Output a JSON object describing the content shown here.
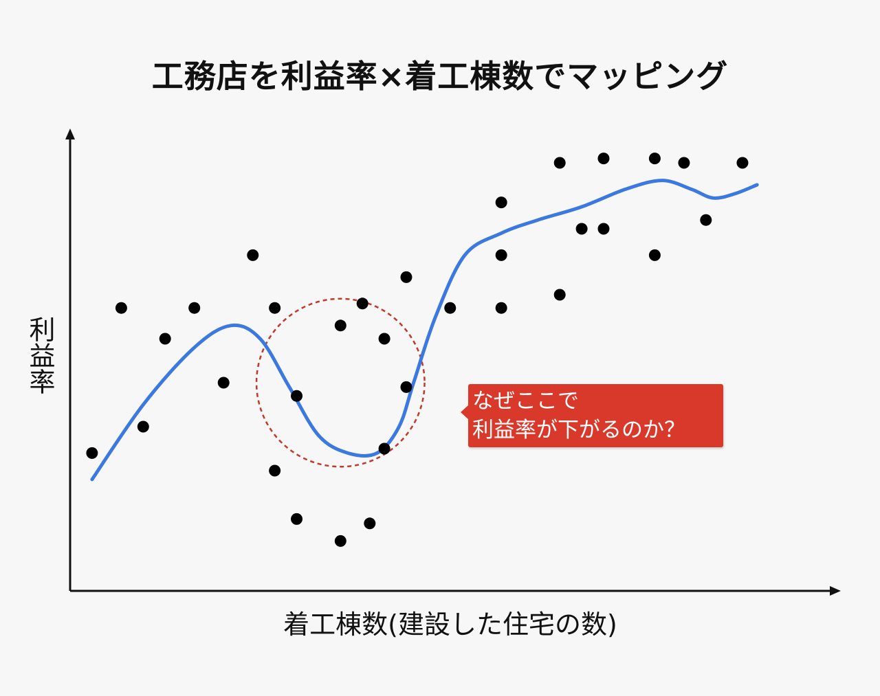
{
  "chart_data": {
    "type": "scatter",
    "title": "工務店を利益率×着工棟数でマッピング",
    "xlabel": "着工棟数(建設した住宅の数)",
    "ylabel": "利益率",
    "xlim": [
      0,
      100
    ],
    "ylim": [
      0,
      100
    ],
    "grid": false,
    "axis_ticks": false,
    "point_color": "#000000",
    "trend_color": "#3b78e0",
    "points": [
      {
        "x": 3,
        "y": 29
      },
      {
        "x": 7,
        "y": 62
      },
      {
        "x": 10,
        "y": 35
      },
      {
        "x": 13,
        "y": 55
      },
      {
        "x": 17,
        "y": 62
      },
      {
        "x": 21,
        "y": 45
      },
      {
        "x": 25,
        "y": 74
      },
      {
        "x": 28,
        "y": 25
      },
      {
        "x": 28,
        "y": 62
      },
      {
        "x": 31,
        "y": 42
      },
      {
        "x": 31,
        "y": 14
      },
      {
        "x": 37,
        "y": 58
      },
      {
        "x": 37,
        "y": 9
      },
      {
        "x": 40,
        "y": 63
      },
      {
        "x": 41,
        "y": 13
      },
      {
        "x": 43,
        "y": 55
      },
      {
        "x": 43,
        "y": 30
      },
      {
        "x": 46,
        "y": 44
      },
      {
        "x": 46,
        "y": 69
      },
      {
        "x": 52,
        "y": 62
      },
      {
        "x": 59,
        "y": 62
      },
      {
        "x": 59,
        "y": 74
      },
      {
        "x": 59,
        "y": 86
      },
      {
        "x": 67,
        "y": 65
      },
      {
        "x": 67,
        "y": 95
      },
      {
        "x": 70,
        "y": 80
      },
      {
        "x": 73,
        "y": 80
      },
      {
        "x": 73,
        "y": 96
      },
      {
        "x": 80,
        "y": 74
      },
      {
        "x": 80,
        "y": 96
      },
      {
        "x": 84,
        "y": 95
      },
      {
        "x": 87,
        "y": 82
      },
      {
        "x": 92,
        "y": 95
      }
    ],
    "trend_line": [
      {
        "x": 3,
        "y": 23
      },
      {
        "x": 10,
        "y": 40
      },
      {
        "x": 17,
        "y": 53
      },
      {
        "x": 22,
        "y": 58
      },
      {
        "x": 26,
        "y": 55
      },
      {
        "x": 30,
        "y": 44
      },
      {
        "x": 34,
        "y": 33
      },
      {
        "x": 38,
        "y": 29
      },
      {
        "x": 42,
        "y": 29
      },
      {
        "x": 45,
        "y": 35
      },
      {
        "x": 47,
        "y": 45
      },
      {
        "x": 50,
        "y": 60
      },
      {
        "x": 54,
        "y": 74
      },
      {
        "x": 59,
        "y": 79
      },
      {
        "x": 64,
        "y": 82
      },
      {
        "x": 70,
        "y": 85
      },
      {
        "x": 76,
        "y": 89
      },
      {
        "x": 81,
        "y": 91
      },
      {
        "x": 85,
        "y": 89
      },
      {
        "x": 88,
        "y": 87
      },
      {
        "x": 91,
        "y": 88
      },
      {
        "x": 94,
        "y": 90
      }
    ],
    "highlight_circle": {
      "center": {
        "x": 37,
        "y": 45
      },
      "radius_x": 11.5,
      "color": "#c0392b",
      "style": "dashed"
    },
    "annotation": {
      "text": "なぜここで\n利益率が下がるのか？",
      "background": "#d9392a",
      "text_color": "#ffffff"
    }
  }
}
